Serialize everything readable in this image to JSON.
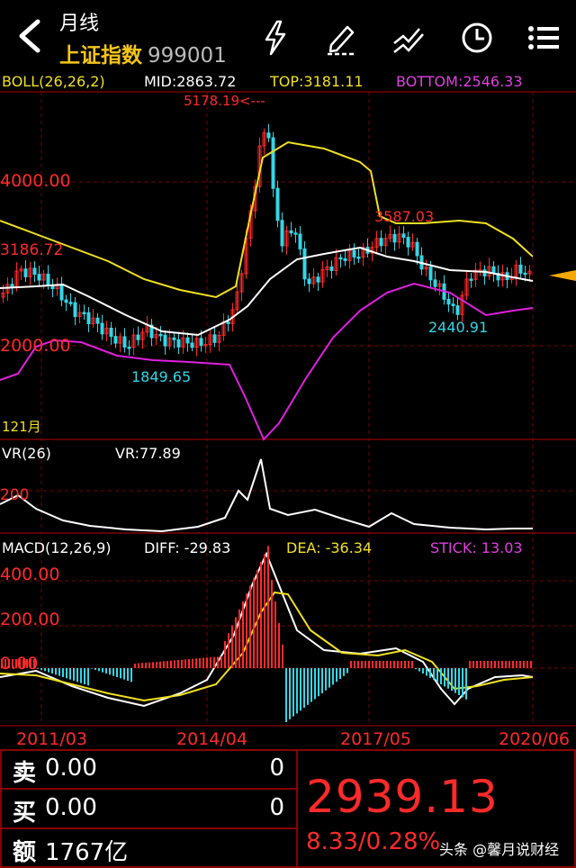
{
  "header": {
    "period": "月线",
    "stock_name": "上证指数",
    "stock_code": "999001"
  },
  "icons": [
    "back-arrow-icon",
    "lightning-icon",
    "pen-icon",
    "trend-line-icon",
    "clock-icon",
    "menu-icon"
  ],
  "boll": {
    "label": "BOLL(26,26,2)",
    "mid": "MID:2863.72",
    "top": "TOP:3181.11",
    "bottom": "BOTTOM:2546.33"
  },
  "price_axis": [
    "4000.00",
    "3186.72",
    "2000.00"
  ],
  "annotations": {
    "high": "5178.19<---",
    "peak2": "3587.03",
    "low1": "1849.65",
    "low2": "2440.91",
    "bar_count": "121月"
  },
  "vr": {
    "label": "VR(26)",
    "value": "VR:77.89",
    "axis": "200"
  },
  "macd": {
    "label": "MACD(12,26,9)",
    "diff": "DIFF: -29.83",
    "dea": "DEA: -36.34",
    "stick": "STICK: 13.03",
    "axis": [
      "400.00",
      "200.00",
      "0.00"
    ]
  },
  "dates": [
    "2011/03",
    "2014/04",
    "2017/05",
    "2020/06"
  ],
  "quote": {
    "sell_label": "卖",
    "sell_price": "0.00",
    "sell_qty": "0",
    "buy_label": "买",
    "buy_price": "0.00",
    "buy_qty": "0",
    "amount_label": "额",
    "amount_value": "1767亿",
    "last_price": "2939.13",
    "change": "8.33/0.28%"
  },
  "watermark": "头条 @馨月说财经",
  "colors": {
    "up": "#ff2a2a",
    "down": "#33d6e6",
    "mid_line": "#ffffff",
    "top_line": "#f0e020",
    "bottom_line": "#e020e0",
    "grid": "#7a0000",
    "boll_label": "#f0e020",
    "bottom_label": "#e040e0"
  }
}
